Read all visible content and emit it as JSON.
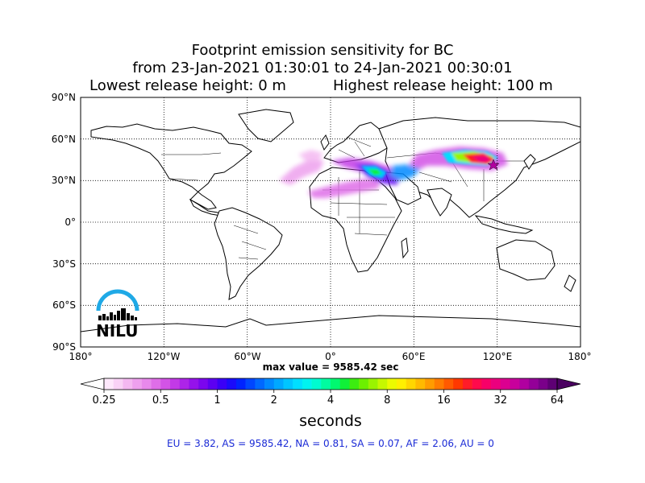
{
  "title": {
    "line1": "Footprint emission sensitivity for BC",
    "line2": "from 23-Jan-2021 01:30:01 to 24-Jan-2021 00:30:01",
    "line3_left": "Lowest release height: 0 m",
    "line3_right": "Highest release height: 100 m"
  },
  "axes": {
    "lat_labels": [
      "90°N",
      "60°N",
      "30°N",
      "0°",
      "30°S",
      "60°S",
      "90°S"
    ],
    "lon_labels": [
      "180°",
      "120°W",
      "60°W",
      "0°",
      "60°E",
      "120°E",
      "180°"
    ],
    "lon_range": [
      -180,
      180
    ],
    "lat_range": [
      -90,
      90
    ],
    "grid": "dotted"
  },
  "max_value_text": "max value = 9585.42 sec",
  "colorbar": {
    "tick_labels": [
      "0.25",
      "0.5",
      "1",
      "2",
      "4",
      "8",
      "16",
      "32",
      "64"
    ],
    "units": "seconds",
    "colors": [
      "#fde8fb",
      "#f9d2f6",
      "#f4b8f1",
      "#eea0ee",
      "#e889ec",
      "#df6ee8",
      "#d353e6",
      "#c23ae6",
      "#ad24e8",
      "#9512eb",
      "#7b06ee",
      "#5c00f2",
      "#3a00f7",
      "#1a0bfb",
      "#0023ff",
      "#0046ff",
      "#0068ff",
      "#0089ff",
      "#00a8ff",
      "#00c5ff",
      "#00dfff",
      "#00f3f0",
      "#00fbd0",
      "#00fca0",
      "#00f870",
      "#10f038",
      "#3cec10",
      "#6cf000",
      "#9af400",
      "#c6f800",
      "#ecfb00",
      "#fff000",
      "#ffd600",
      "#ffba00",
      "#ff9c00",
      "#ff7c00",
      "#ff5a00",
      "#ff3800",
      "#ff1c28",
      "#ff0a4c",
      "#f80068",
      "#ec007e",
      "#dc0090",
      "#c8009c",
      "#b000a0",
      "#940098",
      "#7a008a",
      "#5e0074"
    ],
    "extend": "both"
  },
  "regional_summary": "EU = 3.82,  AS = 9585.42,  NA = 0.81,  SA = 0.07,  AF = 2.06,  AU = 0",
  "logo": {
    "text": "NILU",
    "arc_color": "#1fa9e6"
  },
  "map": {
    "land_fill": "#ffffff",
    "coast_color": "#000000",
    "plume_center": "Central Asia",
    "plume_colors": [
      "#d353e6",
      "#7b06ee",
      "#00c5ff",
      "#6cf000",
      "#ff1c28",
      "#ec007e"
    ]
  }
}
